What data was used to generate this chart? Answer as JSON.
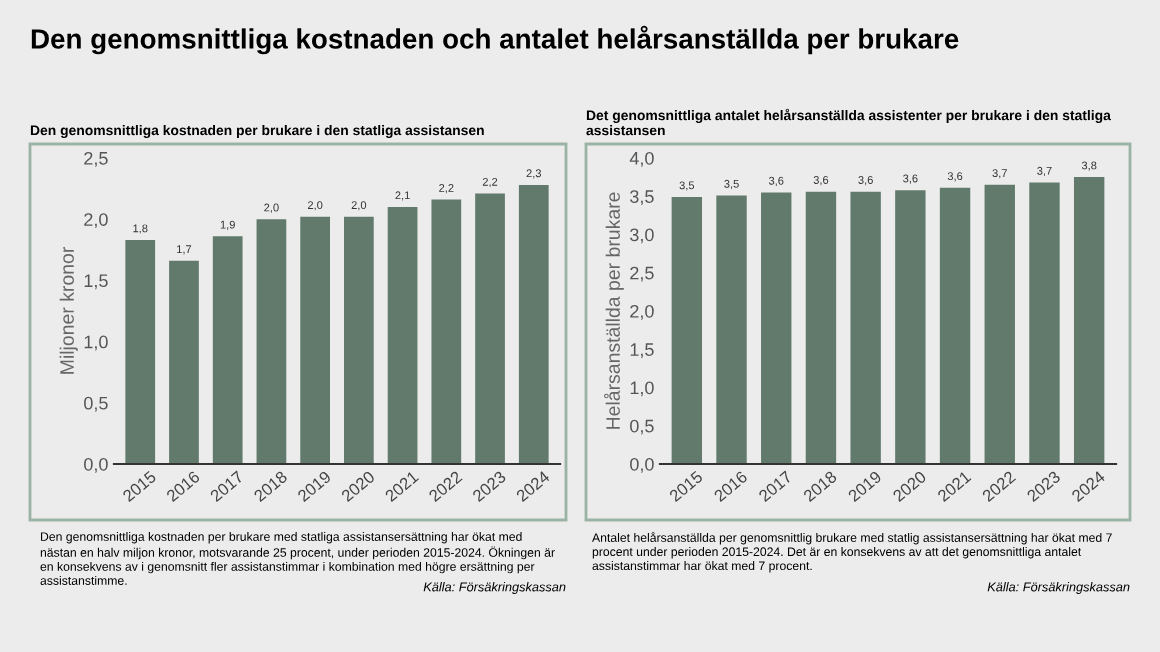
{
  "chart_data": [
    {
      "type": "bar",
      "title": "Den genomsnittliga kostnaden och antalet helårsanställda per brukare",
      "subtitle": "Den genomsnittliga kostnaden per brukare i den statliga assistansen",
      "ylabel": "Miljoner kronor",
      "categories": [
        "2015",
        "2016",
        "2017",
        "2018",
        "2019",
        "2020",
        "2021",
        "2022",
        "2023",
        "2024"
      ],
      "values": [
        1.83,
        1.66,
        1.86,
        2.0,
        2.02,
        2.02,
        2.1,
        2.16,
        2.21,
        2.28
      ],
      "value_labels": [
        "1,8",
        "1,7",
        "1,9",
        "2,0",
        "2,0",
        "2,0",
        "2,1",
        "2,2",
        "2,2",
        "2,3"
      ],
      "color": "#627a6c",
      "ylim": [
        0,
        2.5
      ],
      "yticks": [
        {
          "value": 0,
          "label": "0,0"
        },
        {
          "value": 0.5,
          "label": "0,5"
        },
        {
          "value": 1,
          "label": "1,0"
        },
        {
          "value": 1.5,
          "label": "1,5"
        },
        {
          "value": 2,
          "label": "2,0"
        },
        {
          "value": 2.5,
          "label": "2,5"
        }
      ],
      "grid": false,
      "annotations": [
        "Den genomsnittliga kostnaden per brukare med statliga assistansersättning har ökat med nästan en halv miljon kronor, motsvarande 25 procent, under perioden 2015-2024. Ökningen är en konsekvens av i genomsnitt fler assistanstimmar i kombination med högre ersättning per assistanstimme.",
        "Källa: Försäkringskassan"
      ]
    },
    {
      "type": "bar",
      "subtitle": "Det genomsnittliga antalet helårsanställda assistenter per brukare i den statliga assistansen",
      "ylabel": "Helårsanställda per brukare",
      "categories": [
        "2015",
        "2016",
        "2017",
        "2018",
        "2019",
        "2020",
        "2021",
        "2022",
        "2023",
        "2024"
      ],
      "values": [
        3.49,
        3.51,
        3.55,
        3.56,
        3.56,
        3.58,
        3.61,
        3.65,
        3.68,
        3.75
      ],
      "value_labels": [
        "3,5",
        "3,5",
        "3,6",
        "3,6",
        "3,6",
        "3,6",
        "3,6",
        "3,7",
        "3,7",
        "3,8"
      ],
      "color": "#627a6c",
      "ylim": [
        0,
        4.0
      ],
      "yticks": [
        {
          "value": 0,
          "label": "0,0"
        },
        {
          "value": 0.5,
          "label": "0,5"
        },
        {
          "value": 1,
          "label": "1,0"
        },
        {
          "value": 1.5,
          "label": "1,5"
        },
        {
          "value": 2,
          "label": "2,0"
        },
        {
          "value": 2.5,
          "label": "2,5"
        },
        {
          "value": 3,
          "label": "3,0"
        },
        {
          "value": 3.5,
          "label": "3,5"
        },
        {
          "value": 4,
          "label": "4,0"
        }
      ],
      "grid": false,
      "annotations": [
        "Antalet helårsanställda per genomsnittlig brukare med statlig assistansersättning har ökat med 7 procent under perioden 2015-2024. Det är en konsekvens av att det genomsnittliga antalet assistanstimmar har ökat med 7 procent.",
        "Källa: Försäkringskassan"
      ]
    }
  ]
}
